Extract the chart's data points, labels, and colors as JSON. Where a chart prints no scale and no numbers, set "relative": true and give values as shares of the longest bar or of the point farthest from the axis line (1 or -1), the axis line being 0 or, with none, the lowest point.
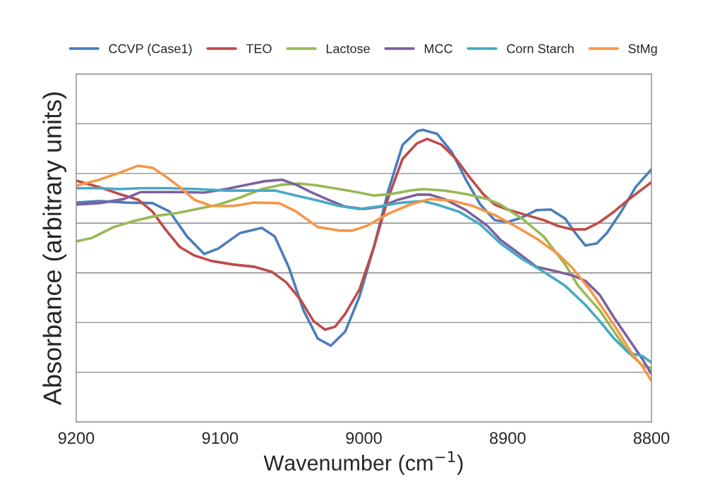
{
  "chart_data": {
    "type": "line",
    "relative": true,
    "xlabel": "Wavenumber (cm$^{−1}$)",
    "ylabel": "Absorbance (arbitrary units)",
    "xlim": [
      9200,
      8800
    ],
    "xticks": [
      9200,
      9100,
      9000,
      8900,
      8800
    ],
    "grid": "y",
    "legend": "top",
    "marker": "none",
    "line_style": "solid",
    "tick_labels": "x",
    "series": [
      {
        "name": "CCVP (Case1)",
        "color": "#4a7ebb",
        "x": [
          9200,
          9184,
          9165,
          9147,
          9135,
          9123,
          9111,
          9101,
          9086,
          9071,
          9062,
          9052,
          9042,
          9032,
          9023,
          9013,
          9003,
          8993,
          8983,
          8973,
          8963,
          8959,
          8949,
          8939,
          8929,
          8919,
          8909,
          8900,
          8890,
          8880,
          8870,
          8860,
          8853,
          8846,
          8838,
          8831,
          8821,
          8811,
          8800
        ],
        "values": [
          0.751,
          0.756,
          0.751,
          0.749,
          0.72,
          0.635,
          0.575,
          0.594,
          0.647,
          0.664,
          0.635,
          0.527,
          0.382,
          0.285,
          0.261,
          0.309,
          0.43,
          0.599,
          0.792,
          0.949,
          0.995,
          1.0,
          0.986,
          0.925,
          0.829,
          0.744,
          0.691,
          0.684,
          0.7,
          0.725,
          0.727,
          0.696,
          0.647,
          0.604,
          0.611,
          0.647,
          0.72,
          0.804,
          0.865
        ]
      },
      {
        "name": "TEO",
        "color": "#be4b48",
        "x": [
          9200,
          9184,
          9170,
          9157,
          9147,
          9138,
          9128,
          9118,
          9106,
          9091,
          9076,
          9064,
          9054,
          9044,
          9035,
          9027,
          9020,
          9013,
          9003,
          8993,
          8983,
          8973,
          8963,
          8956,
          8946,
          8936,
          8927,
          8917,
          8909,
          8900,
          8887,
          8875,
          8865,
          8855,
          8846,
          8836,
          8826,
          8816,
          8809,
          8800
        ],
        "values": [
          0.826,
          0.804,
          0.78,
          0.761,
          0.72,
          0.659,
          0.599,
          0.57,
          0.551,
          0.539,
          0.531,
          0.514,
          0.478,
          0.418,
          0.345,
          0.316,
          0.326,
          0.37,
          0.454,
          0.599,
          0.768,
          0.901,
          0.954,
          0.969,
          0.949,
          0.901,
          0.841,
          0.78,
          0.744,
          0.727,
          0.708,
          0.691,
          0.671,
          0.659,
          0.659,
          0.684,
          0.72,
          0.761,
          0.787,
          0.821
        ]
      },
      {
        "name": "Lactose",
        "color": "#98b954",
        "x": [
          9200,
          9189,
          9174,
          9160,
          9145,
          9130,
          9116,
          9101,
          9086,
          9071,
          9057,
          9044,
          9032,
          9017,
          9003,
          8993,
          8981,
          8968,
          8959,
          8944,
          8929,
          8914,
          8905,
          8890,
          8875,
          8860,
          8851,
          8836,
          8826,
          8816,
          8806,
          8800
        ],
        "values": [
          0.618,
          0.63,
          0.667,
          0.688,
          0.705,
          0.715,
          0.729,
          0.744,
          0.768,
          0.797,
          0.812,
          0.816,
          0.809,
          0.797,
          0.785,
          0.775,
          0.78,
          0.792,
          0.797,
          0.792,
          0.78,
          0.763,
          0.744,
          0.696,
          0.635,
          0.539,
          0.466,
          0.382,
          0.309,
          0.237,
          0.193,
          0.184
        ]
      },
      {
        "name": "MCC",
        "color": "#7d60a0",
        "x": [
          9200,
          9184,
          9167,
          9155,
          9140,
          9125,
          9111,
          9096,
          9081,
          9069,
          9057,
          9047,
          9037,
          9025,
          9013,
          9000,
          8988,
          8976,
          8963,
          8954,
          8944,
          8929,
          8914,
          8905,
          8895,
          8880,
          8865,
          8855,
          8846,
          8836,
          8826,
          8816,
          8806,
          8800
        ],
        "values": [
          0.744,
          0.749,
          0.763,
          0.787,
          0.787,
          0.787,
          0.785,
          0.797,
          0.812,
          0.824,
          0.829,
          0.812,
          0.787,
          0.761,
          0.737,
          0.729,
          0.737,
          0.761,
          0.778,
          0.778,
          0.763,
          0.725,
          0.671,
          0.623,
          0.587,
          0.531,
          0.514,
          0.502,
          0.483,
          0.435,
          0.357,
          0.285,
          0.213,
          0.164
        ]
      },
      {
        "name": "Corn Starch",
        "color": "#46aac5",
        "x": [
          9200,
          9184,
          9170,
          9155,
          9135,
          9116,
          9096,
          9076,
          9062,
          9047,
          9032,
          9017,
          9003,
          8988,
          8973,
          8959,
          8949,
          8934,
          8919,
          8905,
          8890,
          8875,
          8860,
          8846,
          8836,
          8826,
          8816,
          8806,
          8800
        ],
        "values": [
          0.8,
          0.8,
          0.797,
          0.8,
          0.8,
          0.797,
          0.792,
          0.792,
          0.792,
          0.775,
          0.758,
          0.739,
          0.729,
          0.739,
          0.751,
          0.756,
          0.744,
          0.72,
          0.676,
          0.611,
          0.558,
          0.514,
          0.466,
          0.401,
          0.345,
          0.285,
          0.237,
          0.225,
          0.203
        ]
      },
      {
        "name": "StMg",
        "color": "#f79646",
        "x": [
          9200,
          9184,
          9170,
          9157,
          9147,
          9138,
          9128,
          9118,
          9106,
          9091,
          9076,
          9059,
          9047,
          9032,
          9017,
          9008,
          8998,
          8983,
          8968,
          8954,
          8939,
          8924,
          8909,
          8895,
          8880,
          8865,
          8855,
          8843,
          8833,
          8823,
          8814,
          8806,
          8800
        ],
        "values": [
          0.809,
          0.829,
          0.853,
          0.877,
          0.87,
          0.841,
          0.804,
          0.761,
          0.739,
          0.739,
          0.751,
          0.749,
          0.72,
          0.667,
          0.655,
          0.655,
          0.671,
          0.713,
          0.744,
          0.763,
          0.758,
          0.739,
          0.708,
          0.671,
          0.628,
          0.575,
          0.527,
          0.454,
          0.382,
          0.309,
          0.237,
          0.188,
          0.14
        ]
      }
    ]
  }
}
